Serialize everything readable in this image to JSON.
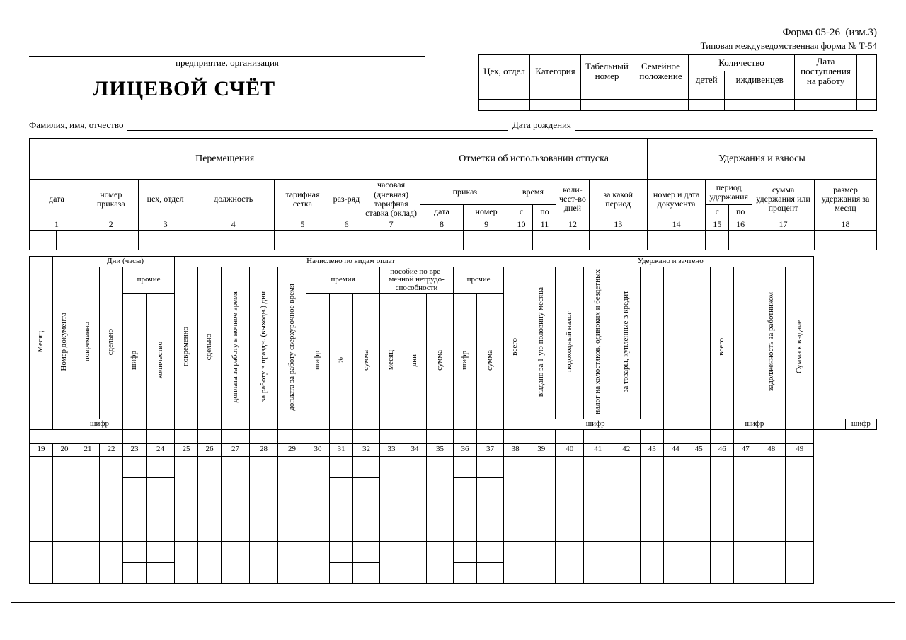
{
  "form": {
    "number": "Форма 05-26",
    "edition": "(изм.3)",
    "standard": "Типовая междуведомственная форма № Т-54",
    "org_caption": "предприятие, организация",
    "title": "ЛИЦЕВОЙ СЧЁТ",
    "fio_label": "Фамилия, имя, отчество",
    "dob_label": "Дата рождения"
  },
  "meta_headers": {
    "dept": "Цех, отдел",
    "category": "Категория",
    "tab_no": "Табельный номер",
    "family": "Семейное положение",
    "qty": "Количество",
    "children": "детей",
    "dependents": "иждивенцев",
    "start_date": "Дата поступления на работу"
  },
  "sections": {
    "moves": "Перемещения",
    "vacation": "Отметки об использовании отпуска",
    "deductions": "Удержания и взносы"
  },
  "cols": {
    "date": "дата",
    "order_no": "номер приказа",
    "dept": "цех, отдел",
    "position": "должность",
    "tariff_grid": "тарифная сетка",
    "grade": "раз-ряд",
    "rate": "часовая (дневная) тарифная ставка (оклад)",
    "order": "приказ",
    "order_date": "дата",
    "order_num": "номер",
    "time": "время",
    "from": "с",
    "to": "по",
    "days": "коли-чест-во дней",
    "period": "за какой период",
    "doc_no_date": "номер и дата документа",
    "ded_period": "период удержания",
    "ded_amount": "сумма удержания или процент",
    "ded_month": "размер удержания за месяц"
  },
  "col_nums_top": [
    "1",
    "2",
    "3",
    "4",
    "5",
    "6",
    "7",
    "8",
    "9",
    "10",
    "11",
    "12",
    "13",
    "14",
    "15",
    "16",
    "17",
    "18"
  ],
  "bottom_sections": {
    "days": "Дни (часы)",
    "accrued": "Начислено по видам оплат",
    "withheld": "Удержано и зачтено"
  },
  "bottom_cols": {
    "month": "Месяц",
    "doc_no": "Номер документа",
    "time_based": "повременно",
    "piece": "сдельно",
    "other": "прочие",
    "code": "шифр",
    "qty": "количество",
    "night": "доплата за работу в ночное время",
    "holidays": "за работу в праздн. (выходн.) дни",
    "overtime": "доплата за работу сверхурочное время",
    "bonus": "премия",
    "percent": "%",
    "sum": "сумма",
    "sick": "пособие по вре-менной нетрудо-способности",
    "sick_month": "месяц",
    "sick_days": "дни",
    "total": "всего",
    "advance": "выдано за 1-ую половину месяца",
    "income_tax": "подоходный налог",
    "single_tax": "налог на холостяков, одиноких и бездетных",
    "credit": "за товары, купленные в кредит",
    "debt": "задолженность за работником",
    "payout": "Сумма к выдаче"
  },
  "col_nums_bottom": [
    "19",
    "20",
    "21",
    "22",
    "23",
    "24",
    "25",
    "26",
    "27",
    "28",
    "29",
    "30",
    "31",
    "32",
    "33",
    "34",
    "35",
    "36",
    "37",
    "38",
    "39",
    "40",
    "41",
    "42",
    "43",
    "44",
    "45",
    "46",
    "47",
    "48",
    "49"
  ]
}
